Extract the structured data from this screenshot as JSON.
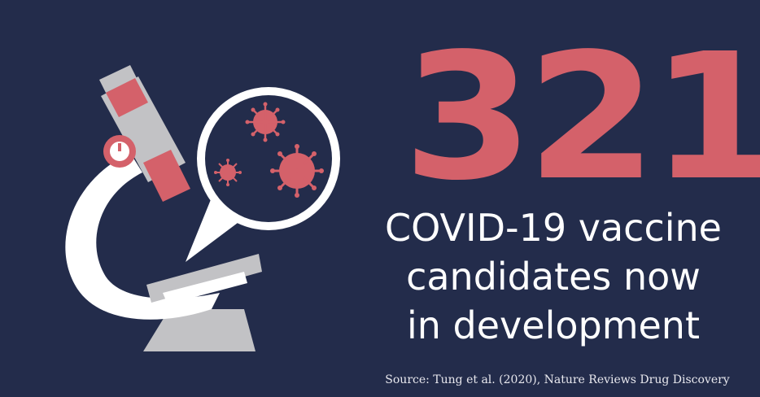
{
  "headline": {
    "number": "321",
    "caption_lines": [
      "COVID-19 vaccine",
      "candidates now",
      "in development"
    ]
  },
  "source": "Source: Tung et al. (2020), Nature Reviews Drug Discovery",
  "colors": {
    "background": "#232c4b",
    "accent": "#d4616a",
    "text": "#ffffff",
    "microscope_white": "#ffffff",
    "microscope_gray": "#bfbfc2"
  },
  "icons": [
    "microscope-icon",
    "magnifier-bubble-icon",
    "virus-icon"
  ]
}
